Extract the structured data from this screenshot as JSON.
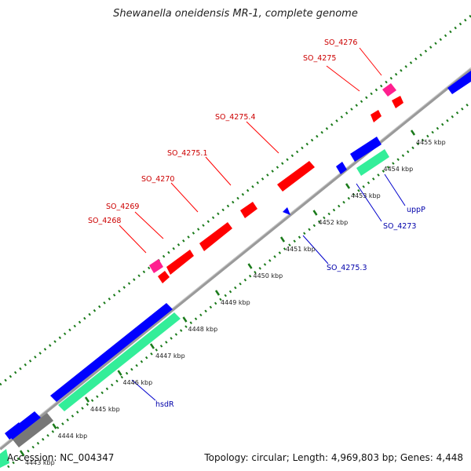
{
  "title": "Shewanella oneidensis MR-1, complete genome",
  "footer": {
    "accession": "Accession: NC_004347",
    "summary": "Topology: circular; Length: 4,969,803 bp; Genes: 4,448"
  },
  "colors": {
    "forward_cds": "#ff0000",
    "forward_rna": "#ff1f8f",
    "reverse_cds": "#0000ff",
    "reverse_gene": "#33ee99",
    "backbone": "#888888",
    "forward_label": "#cc0000",
    "reverse_label": "#0000aa",
    "dots": "#1a7a1a"
  },
  "ticks": [
    {
      "label": "4443 kbp"
    },
    {
      "label": "4444 kbp"
    },
    {
      "label": "4445 kbp"
    },
    {
      "label": "4446 kbp"
    },
    {
      "label": "4447 kbp"
    },
    {
      "label": "4448 kbp"
    },
    {
      "label": "4449 kbp"
    },
    {
      "label": "4450 kbp"
    },
    {
      "label": "4451 kbp"
    },
    {
      "label": "4452 kbp"
    },
    {
      "label": "4453 kbp"
    },
    {
      "label": "4454 kbp"
    },
    {
      "label": "4455 kbp"
    }
  ],
  "forward_labels": [
    {
      "text": "SO_4268"
    },
    {
      "text": "SO_4269"
    },
    {
      "text": "SO_4270"
    },
    {
      "text": "SO_4275.1"
    },
    {
      "text": "SO_4275.4"
    },
    {
      "text": "SO_4275"
    },
    {
      "text": "SO_4276"
    }
  ],
  "reverse_labels": [
    {
      "text": "hsdR"
    },
    {
      "text": "SO_4275.3"
    },
    {
      "text": "SO_4273"
    },
    {
      "text": "uppP"
    }
  ]
}
